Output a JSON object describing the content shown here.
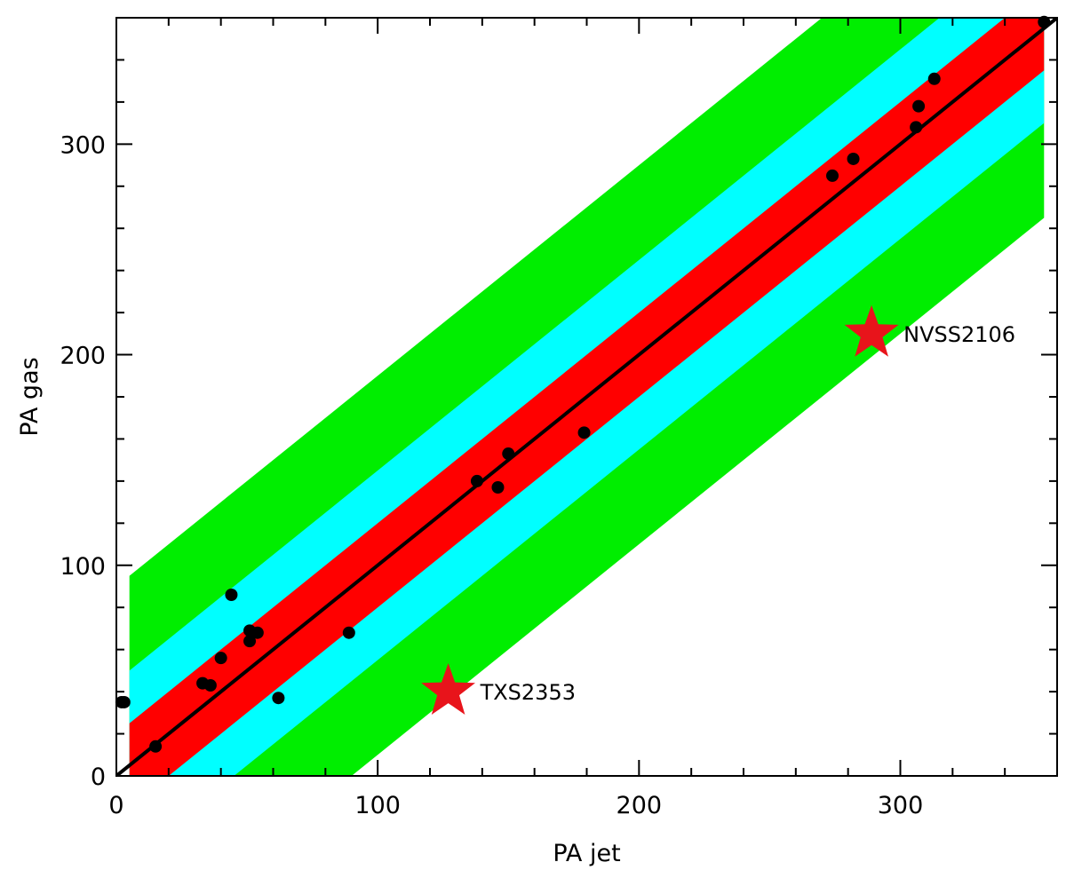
{
  "chart_data": {
    "type": "scatter",
    "title": "",
    "xlabel": "PA jet",
    "ylabel": "PA gas",
    "xlim": [
      0,
      360
    ],
    "ylim": [
      0,
      360
    ],
    "xticks": [
      0,
      100,
      200,
      300
    ],
    "yticks": [
      0,
      100,
      200,
      300
    ],
    "grid": false,
    "legend": "none",
    "band_x_range": [
      5,
      355
    ],
    "bands": [
      {
        "name": "",
        "half_width": 90,
        "color": "#00ee00"
      },
      {
        "name": "",
        "half_width": 45,
        "color": "#00ffff"
      },
      {
        "name": "",
        "half_width": 20,
        "color": "#ff0000"
      }
    ],
    "reference_line": {
      "slope": 1,
      "intercept": 0,
      "color": "#000000"
    },
    "points": [
      {
        "x": 2,
        "y": 35
      },
      {
        "x": 3,
        "y": 35
      },
      {
        "x": 15,
        "y": 14
      },
      {
        "x": 33,
        "y": 44
      },
      {
        "x": 36,
        "y": 43
      },
      {
        "x": 40,
        "y": 56
      },
      {
        "x": 44,
        "y": 86
      },
      {
        "x": 51,
        "y": 64
      },
      {
        "x": 51,
        "y": 69
      },
      {
        "x": 54,
        "y": 68
      },
      {
        "x": 62,
        "y": 37
      },
      {
        "x": 89,
        "y": 68
      },
      {
        "x": 138,
        "y": 140
      },
      {
        "x": 146,
        "y": 137
      },
      {
        "x": 150,
        "y": 153
      },
      {
        "x": 179,
        "y": 163
      },
      {
        "x": 274,
        "y": 285
      },
      {
        "x": 282,
        "y": 293
      },
      {
        "x": 306,
        "y": 308
      },
      {
        "x": 307,
        "y": 318
      },
      {
        "x": 313,
        "y": 331
      },
      {
        "x": 355,
        "y": 358
      }
    ],
    "highlighted": [
      {
        "label": "TXS2353",
        "x": 127,
        "y": 40,
        "color": "#e8141b"
      },
      {
        "label": "NVSS2106",
        "x": 289,
        "y": 210,
        "color": "#e8141b"
      }
    ]
  }
}
